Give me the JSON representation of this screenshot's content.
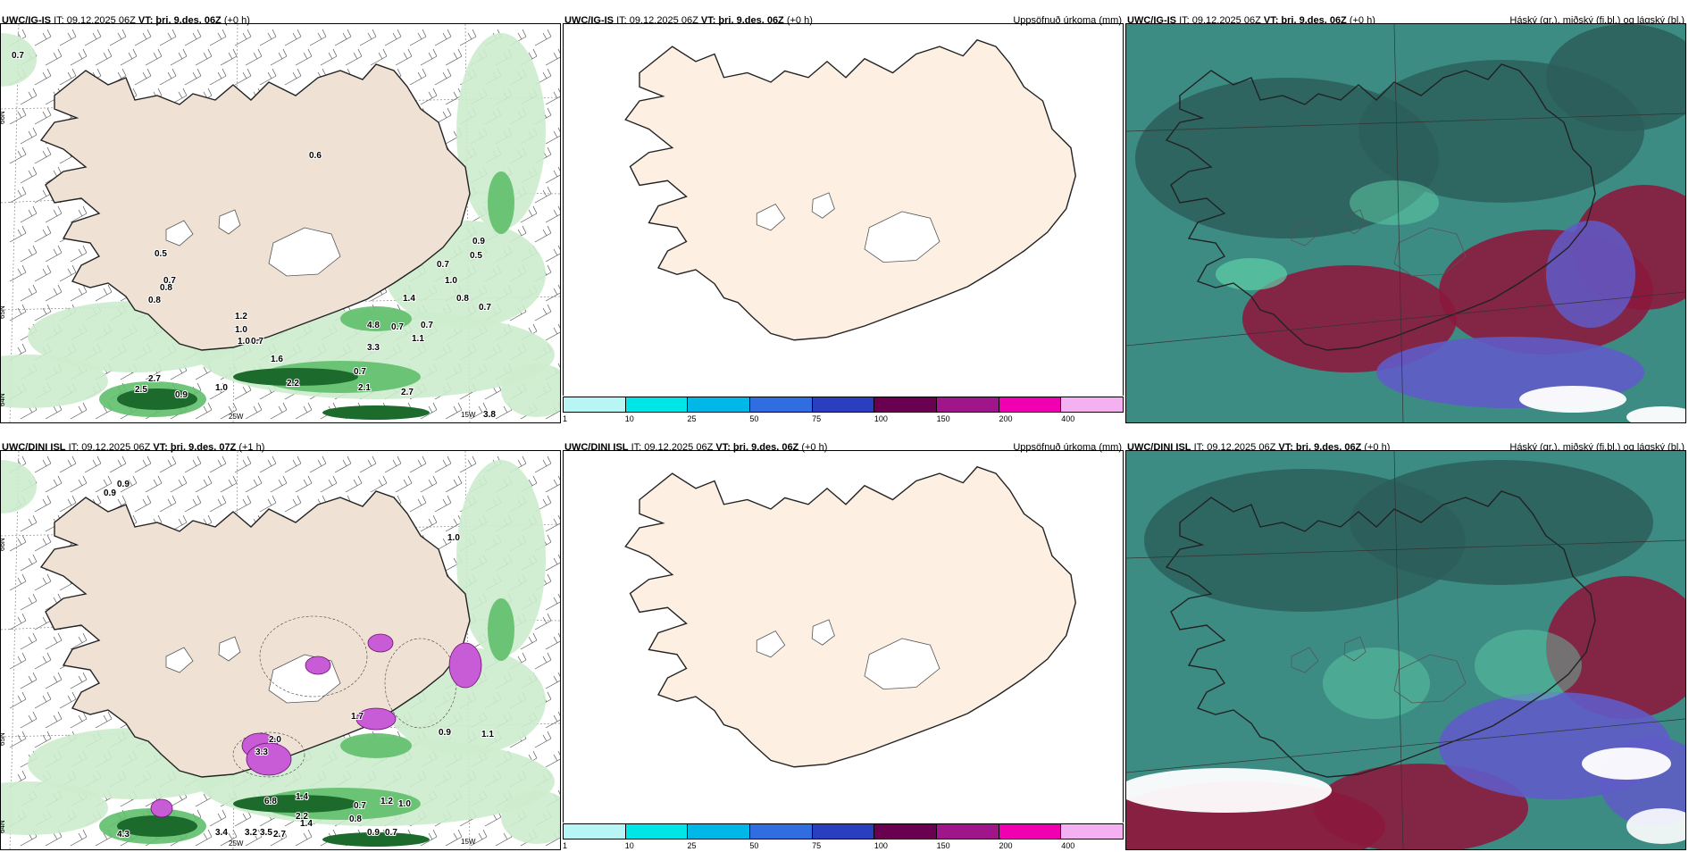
{
  "colors": {
    "land": "#efe2d4",
    "land_light": "#fdf0e3",
    "precip_light": "#cdeccd",
    "precip_mid": "#5fbf6a",
    "precip_dark": "#1d6b2c",
    "purple": "#c85bd6",
    "cloud_teal": "#3d8c84",
    "cloud_dark": "#2b5e5a",
    "cloud_red": "#8b1a3d",
    "cloud_blue": "#5f5bc8"
  },
  "panels": [
    {
      "id": "igis-precip",
      "model": "UWC/IG-IS",
      "it_label": "IT: 09.12.2025 06Z",
      "vt_label": "VT: þri. 9.des. 06Z",
      "offset": "(+0 h)",
      "right_title": "",
      "value_labels": [
        "0.7",
        "0.6",
        "0.5",
        "0.7",
        "0.8",
        "0.8",
        "1.2",
        "1.0",
        "1.0",
        "0.7",
        "4.8",
        "0.7",
        "0.7",
        "1.1",
        "1.6",
        "3.3",
        "0.7",
        "2.7",
        "2.5",
        "0.9",
        "1.0",
        "2.2",
        "2.1",
        "2.7",
        "3.8",
        "0.9",
        "0.5",
        "0.7",
        "1.0",
        "0.8",
        "0.7",
        "1.4"
      ],
      "axis_labels": [
        "66N",
        "65N",
        "64N",
        "25W",
        "15W"
      ]
    },
    {
      "id": "igis-accum",
      "model": "UWC/IG-IS",
      "it_label": "IT: 09.12.2025 06Z",
      "vt_label": "VT: þri. 9.des. 06Z",
      "offset": "(+0 h)",
      "right_title": "Uppsöfnuð úrkoma (mm)"
    },
    {
      "id": "igis-cloud",
      "model": "UWC/IG-IS",
      "it_label": "IT: 09.12.2025 06Z",
      "vt_label": "VT: þri. 9.des. 06Z",
      "offset": "(+0 h)",
      "right_title": "Háský (gr.), miðský (fj.bl.) og lágský (bl.)"
    },
    {
      "id": "dini-precip",
      "model": "UWC/DINI ISL",
      "it_label": "IT: 09.12.2025 06Z",
      "vt_label": "VT: þri. 9.des. 07Z",
      "offset": "(+1 h)",
      "right_title": "",
      "value_labels": [
        "0.9",
        "0.9",
        "1.0",
        "1.7",
        "2.2",
        "3.2",
        "1.4",
        "0.9",
        "0.7",
        "2.0",
        "3.3",
        "6.8",
        "1.4",
        "1.2",
        "1.0",
        "0.8",
        "0.7",
        "3.4",
        "3.5",
        "2.7",
        "4.3",
        "0.9",
        "1.1"
      ],
      "axis_labels": [
        "66N",
        "65N",
        "64N",
        "25W",
        "15W"
      ]
    },
    {
      "id": "dini-accum",
      "model": "UWC/DINI ISL",
      "it_label": "IT: 09.12.2025 06Z",
      "vt_label": "VT: þri. 9.des. 06Z",
      "offset": "(+0 h)",
      "right_title": "Uppsöfnuð úrkoma (mm)"
    },
    {
      "id": "dini-cloud",
      "model": "UWC/DINI ISL",
      "it_label": "IT: 09.12.2025 06Z",
      "vt_label": "VT: þri. 9.des. 06Z",
      "offset": "(+0 h)",
      "right_title": "Háský (gr.), miðský (fj.bl.) og lágský (bl.)"
    }
  ],
  "legend": {
    "ticks": [
      "1",
      "10",
      "25",
      "50",
      "75",
      "100",
      "150",
      "200",
      "400"
    ],
    "colors": [
      "#b8f5f5",
      "#00e5e5",
      "#00b8e8",
      "#2f6de0",
      "#2a3fc0",
      "#6a0050",
      "#a0158a",
      "#f000b0",
      "#f4b0f0"
    ]
  }
}
